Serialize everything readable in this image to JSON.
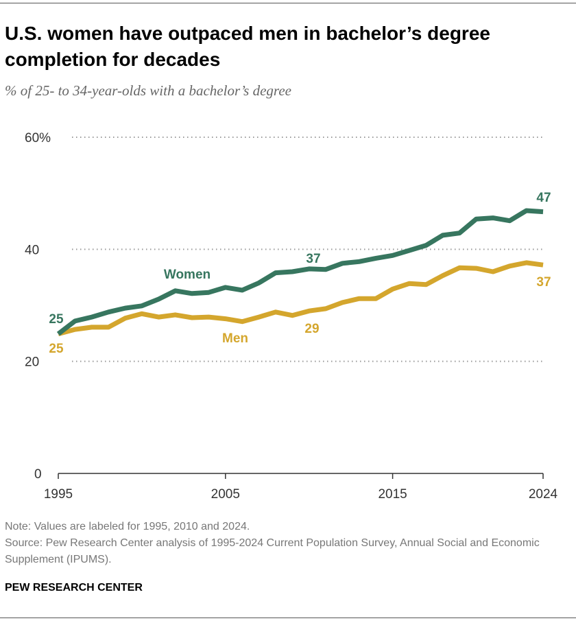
{
  "title": "U.S. women have outpaced men in bachelor’s degree completion for decades",
  "subtitle": "% of 25- to 34-year-olds with a bachelor’s degree",
  "note": "Note: Values are labeled for 1995, 2010 and 2024.",
  "source": "Source: Pew Research Center analysis of 1995-2024 Current Population Survey, Annual Social and Economic Supplement (IPUMS).",
  "brand": "PEW RESEARCH CENTER",
  "chart_data": {
    "type": "line",
    "ylim": [
      0,
      60
    ],
    "xlim": [
      1995,
      2024
    ],
    "yticks": [
      0,
      20,
      40,
      60
    ],
    "ytick_labels": [
      "0",
      "20",
      "40",
      "60%"
    ],
    "xticks": [
      1995,
      2005,
      2015,
      2024
    ],
    "xtick_labels": [
      "1995",
      "2005",
      "2015",
      "2024"
    ],
    "grid": "horizontal dotted",
    "x": [
      1995,
      1996,
      1997,
      1998,
      1999,
      2000,
      2001,
      2002,
      2003,
      2004,
      2005,
      2006,
      2007,
      2008,
      2009,
      2010,
      2011,
      2012,
      2013,
      2014,
      2015,
      2016,
      2017,
      2018,
      2019,
      2020,
      2021,
      2022,
      2023,
      2024
    ],
    "series": [
      {
        "name": "Women",
        "color": "#37765f",
        "values": [
          24.9,
          27.2,
          27.9,
          28.8,
          29.5,
          29.9,
          31.1,
          32.6,
          32.1,
          32.3,
          33.2,
          32.7,
          34.0,
          35.8,
          36.0,
          36.5,
          36.4,
          37.5,
          37.8,
          38.4,
          38.9,
          39.8,
          40.7,
          42.5,
          42.9,
          45.4,
          45.6,
          45.1,
          46.9,
          46.7
        ],
        "labels": [
          {
            "x": 1995,
            "text": "25"
          },
          {
            "x": 2010,
            "text": "37"
          },
          {
            "x": 2024,
            "text": "47"
          }
        ]
      },
      {
        "name": "Men",
        "color": "#d4a62d",
        "values": [
          24.9,
          25.7,
          26.1,
          26.1,
          27.7,
          28.5,
          27.9,
          28.3,
          27.8,
          27.9,
          27.6,
          27.1,
          27.9,
          28.8,
          28.2,
          29.0,
          29.4,
          30.5,
          31.2,
          31.2,
          32.9,
          33.9,
          33.7,
          35.3,
          36.7,
          36.6,
          36.0,
          37.0,
          37.6,
          37.2
        ],
        "labels": [
          {
            "x": 1995,
            "text": "25"
          },
          {
            "x": 2010,
            "text": "29"
          },
          {
            "x": 2024,
            "text": "37"
          }
        ]
      }
    ]
  }
}
